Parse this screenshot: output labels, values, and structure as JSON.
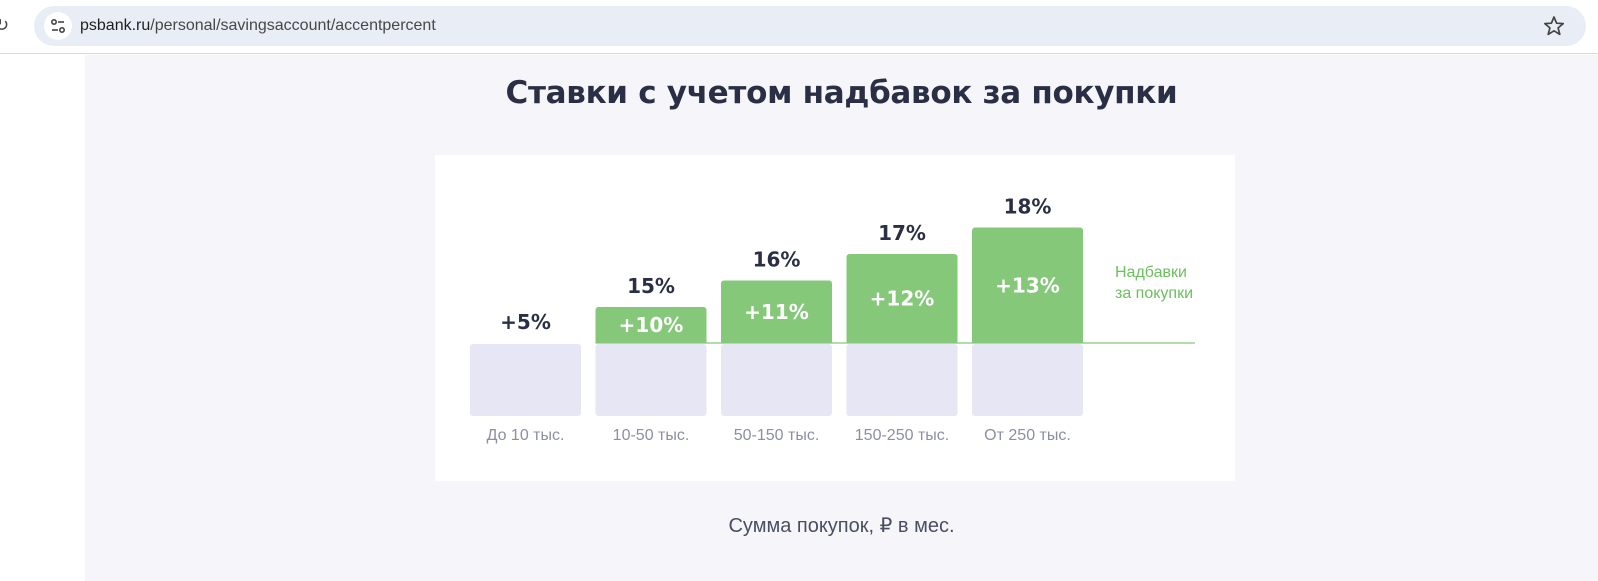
{
  "browser": {
    "url_domain": "psbank.ru",
    "url_path": "/personal/savingsaccount/accentpercent"
  },
  "page": {
    "title": "Ставки с учетом надбавок за покупки",
    "legend_label_line1": "Надбавки",
    "legend_label_line2": "за покупки",
    "footer_label": "Сумма покупок, ₽ в мес."
  },
  "colors": {
    "bonus": "#85c879",
    "base": "#e6e6f5",
    "text_dark": "#2b2f45",
    "text_muted": "#8c8fa3"
  },
  "chart_data": {
    "type": "bar",
    "title": "Ставки с учетом надбавок за покупки",
    "xlabel": "Сумма покупок, ₽ в мес.",
    "categories": [
      "До 10 тыс.",
      "10-50 тыс.",
      "50-150 тыс.",
      "150-250 тыс.",
      "От 250 тыс."
    ],
    "series": [
      {
        "name": "",
        "values": [
          5,
          5,
          5,
          5,
          5
        ]
      },
      {
        "name": "Надбавки за покупки",
        "values": [
          0,
          10,
          11,
          12,
          13
        ]
      }
    ],
    "bar_labels": [
      "",
      "+10%",
      "+11%",
      "+12%",
      "+13%"
    ],
    "top_labels": [
      "+5%",
      "15%",
      "16%",
      "17%",
      "18%"
    ]
  }
}
